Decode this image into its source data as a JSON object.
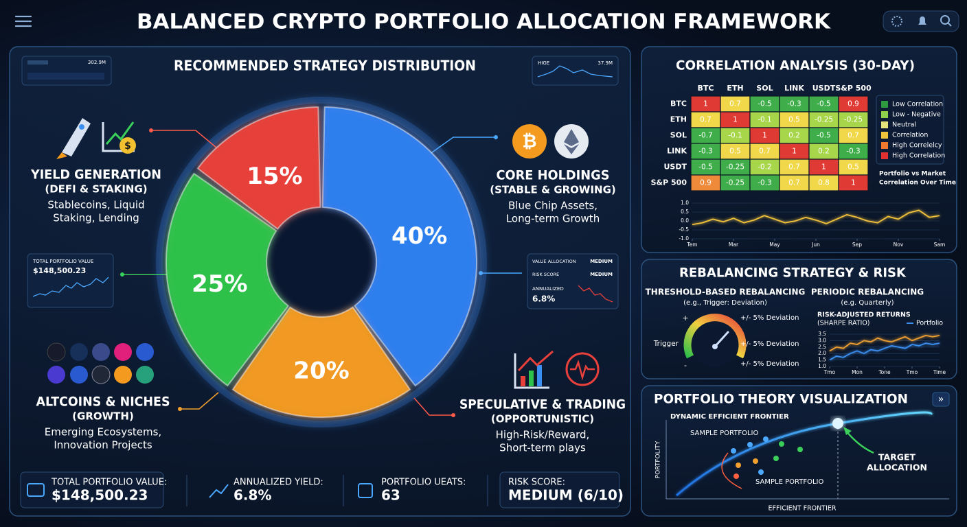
{
  "header": {
    "title": "BALANCED CRYPTO PORTFOLIO ALLOCATION FRAMEWORK"
  },
  "chart_data": [
    {
      "type": "pie",
      "title": "RECOMMENDED STRATEGY DISTRIBUTION",
      "categories": [
        "CORE HOLDINGS",
        "ALTCOINS & NICHES",
        "YIELD GENERATION",
        "SPECULATIVE & TRADING"
      ],
      "subtitles": [
        "(STABLE & GROWING)",
        "(GROWTH)",
        "(DEFI & STAKING)",
        "(OPPORTUNISTIC)"
      ],
      "descriptions": [
        [
          "Blue Chip Assets,",
          "Long-term Growth"
        ],
        [
          "Emerging Ecosystems,",
          "Innovation Projects"
        ],
        [
          "Stablecoins, Liquid",
          "Staking, Lending"
        ],
        [
          "High-Risk/Reward,",
          "Short-term plays"
        ]
      ],
      "values": [
        40,
        20,
        25,
        15
      ],
      "value_labels": [
        "40%",
        "20%",
        "25%",
        "15%"
      ],
      "colors": [
        "#2f7ff0",
        "#f39a1f",
        "#2fc24a",
        "#e8403a"
      ]
    },
    {
      "type": "heatmap",
      "title": "CORRELATION ANALYSIS (30-DAY)",
      "x_categories": [
        "BTC",
        "ETH",
        "SOL",
        "LINK",
        "USDT",
        "S&P 500"
      ],
      "y_categories": [
        "BTC",
        "ETH",
        "SOL",
        "LINK",
        "USDT",
        "S&P 500"
      ],
      "values": [
        [
          1,
          0.7,
          -0.5,
          -0.3,
          -0.5,
          0.9
        ],
        [
          0.7,
          1,
          -0.1,
          0.5,
          -0.25,
          -0.25
        ],
        [
          -0.7,
          -0.1,
          1,
          0.2,
          -0.5,
          0.7
        ],
        [
          -0.3,
          0.5,
          0.7,
          1,
          0.2,
          -0.3
        ],
        [
          -0.5,
          -0.25,
          -0.2,
          0.7,
          1,
          0.5
        ],
        [
          0.9,
          -0.25,
          -0.3,
          0.7,
          0.8,
          1
        ]
      ],
      "colors": [
        [
          "#e03a34",
          "#f0d84a",
          "#3fae4a",
          "#3fae4a",
          "#3fae4a",
          "#e03a34"
        ],
        [
          "#f0d84a",
          "#e03a34",
          "#a7d64a",
          "#f0d84a",
          "#a7d64a",
          "#a7d64a"
        ],
        [
          "#3fae4a",
          "#a7d64a",
          "#e03a34",
          "#a7d64a",
          "#3fae4a",
          "#f0d84a"
        ],
        [
          "#3fae4a",
          "#f0d84a",
          "#f0d84a",
          "#e03a34",
          "#a7d64a",
          "#3fae4a"
        ],
        [
          "#3fae4a",
          "#3fae4a",
          "#a7d64a",
          "#f0d84a",
          "#e03a34",
          "#f0d84a"
        ],
        [
          "#ef8a3a",
          "#3fae4a",
          "#3fae4a",
          "#f0d84a",
          "#f0d84a",
          "#e03a34"
        ]
      ],
      "legend": [
        {
          "label": "Low Correlation",
          "color": "#2e9a3e"
        },
        {
          "label": "Low - Negative",
          "color": "#8fd04a"
        },
        {
          "label": "Neutral",
          "color": "#e8e27a"
        },
        {
          "label": "Correlation",
          "color": "#f0c43a"
        },
        {
          "label": "High Correlelcy",
          "color": "#ef7a30"
        },
        {
          "label": "High Correlation",
          "color": "#e03030"
        }
      ]
    },
    {
      "type": "line",
      "title": [
        "Portfolio vs Market",
        "Correlation Over Time"
      ],
      "x": [
        0,
        1,
        2,
        3,
        4,
        5,
        6,
        7,
        8,
        9,
        10,
        11,
        12,
        13,
        14,
        15,
        16,
        17,
        18,
        19,
        20,
        21,
        22,
        23,
        24
      ],
      "values": [
        -0.2,
        -0.1,
        0.1,
        -0.05,
        0.15,
        -0.1,
        0.05,
        0.3,
        0.1,
        -0.1,
        0.0,
        0.2,
        0.05,
        -0.15,
        0.1,
        0.35,
        0.2,
        0.0,
        -0.1,
        0.25,
        0.1,
        0.45,
        0.6,
        0.2,
        0.3
      ],
      "color": "#f2c23a",
      "xlim": [
        0,
        24
      ],
      "xticks": [
        {
          "value": 0,
          "label": "Tem"
        },
        {
          "value": 4,
          "label": "Mar"
        },
        {
          "value": 8,
          "label": "May"
        },
        {
          "value": 12,
          "label": "Jun"
        },
        {
          "value": 16,
          "label": "Sep"
        },
        {
          "value": 20,
          "label": "Nov"
        },
        {
          "value": 24,
          "label": "Sam"
        }
      ],
      "ylim": [
        -1,
        1
      ],
      "yticks": [
        {
          "value": 1,
          "label": "1.0"
        },
        0.5,
        {
          "value": 0,
          "label": "0.0"
        },
        -0.5,
        {
          "value": -1,
          "label": "-1.0"
        }
      ]
    },
    {
      "type": "line",
      "title": "RISK-ADJUSTED RETURNS",
      "subtitle": "(SHARPE RATIO)",
      "x": [
        0,
        1,
        2,
        3,
        4,
        5,
        6,
        7,
        8,
        9,
        10,
        11,
        12,
        13,
        14,
        15,
        16
      ],
      "series": [
        {
          "name": "Portfolio",
          "color": "#3b8ff0",
          "values": [
            1.5,
            1.8,
            1.7,
            2.0,
            2.2,
            2.0,
            2.3,
            2.2,
            2.4,
            2.6,
            2.5,
            2.4,
            2.7,
            2.6,
            2.8,
            2.7,
            2.8
          ]
        },
        {
          "color": "#f0a030",
          "values": [
            2.2,
            2.5,
            2.4,
            2.8,
            2.7,
            3.0,
            2.9,
            3.2,
            3.0,
            2.9,
            3.1,
            3.3,
            3.0,
            3.2,
            3.4,
            3.3,
            3.4
          ]
        }
      ],
      "xlim": [
        0,
        16
      ],
      "xticks": [
        {
          "value": 0,
          "label": "Tmo"
        },
        {
          "value": 4,
          "label": "Mon"
        },
        {
          "value": 8,
          "label": "Tone"
        },
        {
          "value": 12,
          "label": "Tmo"
        },
        {
          "value": 16,
          "label": "Time"
        }
      ],
      "ylim": [
        1,
        3.5
      ],
      "yticks": [
        3.5,
        {
          "value": 3,
          "label": "3.0"
        },
        2.5,
        {
          "value": 2,
          "label": "2.0"
        },
        1.5,
        {
          "value": 1,
          "label": "1.0"
        }
      ]
    }
  ],
  "mini_cards": [
    {
      "value": "302.9M"
    },
    {
      "label": "HIGE",
      "value": "37.9M"
    }
  ],
  "value_card": {
    "label": "TOTAL PORTFOLIO VALUE",
    "value": "$148,500.23"
  },
  "risk_card": {
    "rows": [
      {
        "label": "VALUE ALLOCATION",
        "value": "MEDIUM"
      },
      {
        "label": "RISK SCORE",
        "value": "MEDIUM"
      },
      {
        "label": "ANNUALIZED",
        "value": "6.8%"
      }
    ]
  },
  "stats": [
    {
      "label": "TOTAL PORTFOLIO VALUE:",
      "value": "$148,500.23"
    },
    {
      "label": "ANNUALIZED YIELD:",
      "value": "6.8%"
    },
    {
      "label": "PORTFOLIO UEATS:",
      "value": "63"
    },
    {
      "label": "RISK SCORE:",
      "value": "MEDIUM (6/10)"
    }
  ],
  "rebalancing": {
    "title": "REBALANCING STRATEGY & RISK",
    "threshold": {
      "title": "THRESHOLD-BASED REBALANCING",
      "note": "(e.g., Trigger: Deviation)",
      "plus": "+",
      "trigger": "Trigger",
      "minus": "-",
      "deviations": [
        "+/- 5% Deviation",
        "+/- 5% Deviation",
        "+/- 5% Deviation"
      ]
    },
    "periodic": {
      "title": "PERIODIC REBALANCING",
      "note": "(e.g. Quarterly)"
    }
  },
  "theory": {
    "title": "PORTFOLIO THEORY VISUALIZATION",
    "button": "»",
    "frontier_label": "DYNAMIC EFFICIENT FRONTIER",
    "sample_labels": [
      "SAMPLE PORTFOLIO",
      "SAMPLE PORTFOLIO"
    ],
    "target": [
      "TARGET",
      "ALLOCATION"
    ],
    "y_label": "PORTFOLITY",
    "x_label": "EFFICIENT FRONTIER"
  }
}
